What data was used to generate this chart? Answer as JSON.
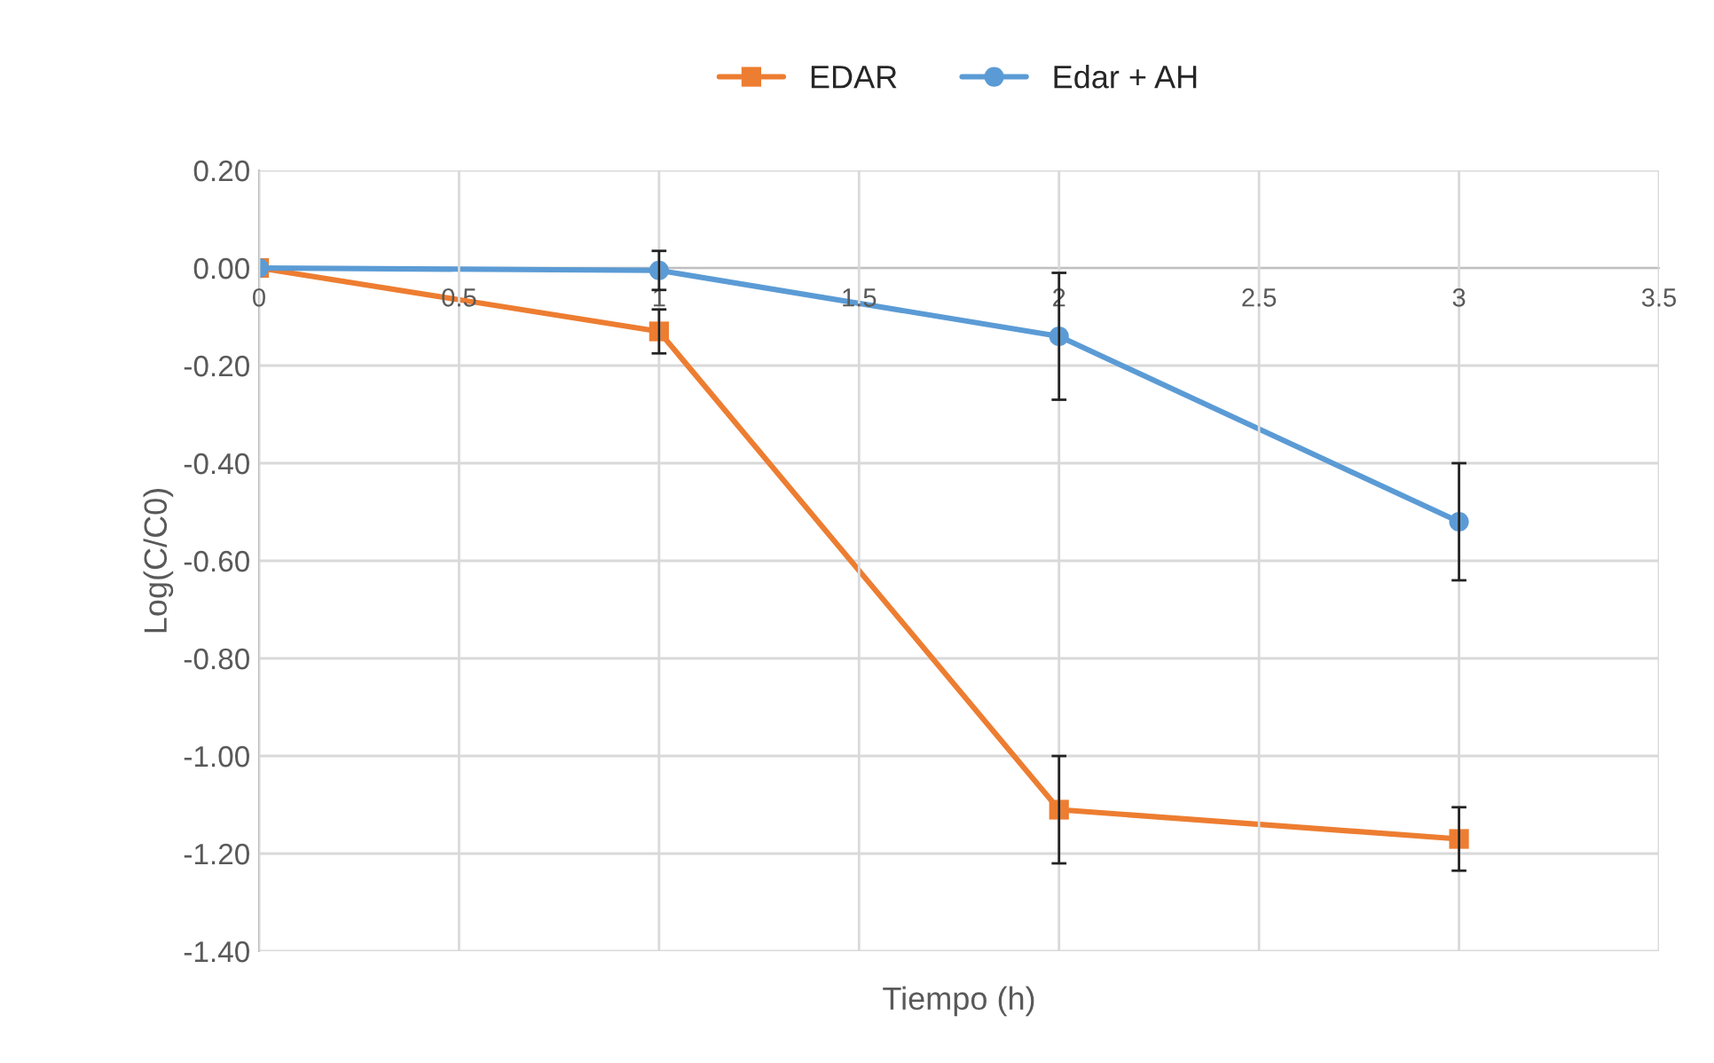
{
  "chart_data": {
    "type": "line",
    "xlabel": "Tiempo (h)",
    "ylabel": "Log(C/C0)",
    "x": [
      0,
      1,
      2,
      3
    ],
    "series": [
      {
        "name": "EDAR",
        "color": "#ed7d31",
        "marker": "square",
        "values": [
          0,
          -0.13,
          -1.11,
          -1.17
        ],
        "errors": [
          null,
          0.045,
          0.11,
          0.065
        ]
      },
      {
        "name": "Edar + AH",
        "color": "#5b9bd5",
        "marker": "circle",
        "values": [
          0,
          -0.005,
          -0.14,
          -0.52
        ],
        "errors": [
          null,
          0.04,
          0.13,
          0.12
        ]
      }
    ],
    "xlim": [
      0,
      3.5
    ],
    "xticks": [
      0,
      0.5,
      1,
      1.5,
      2,
      2.5,
      3,
      3.5
    ],
    "ylim": [
      -1.4,
      0.2
    ],
    "yticks": [
      {
        "value": 0.2,
        "label": "0.20"
      },
      {
        "value": 0,
        "label": "0.00"
      },
      {
        "value": -0.2,
        "label": "-0.20"
      },
      {
        "value": -0.4,
        "label": "-0.40"
      },
      {
        "value": -0.6,
        "label": "-0.60"
      },
      {
        "value": -0.8,
        "label": "-0.80"
      },
      {
        "value": -1.0,
        "label": "-1.00"
      },
      {
        "value": -1.2,
        "label": "-1.20"
      },
      {
        "value": -1.4,
        "label": "-1.40"
      }
    ],
    "grid": true,
    "legend": "top",
    "line_style": "solid"
  }
}
